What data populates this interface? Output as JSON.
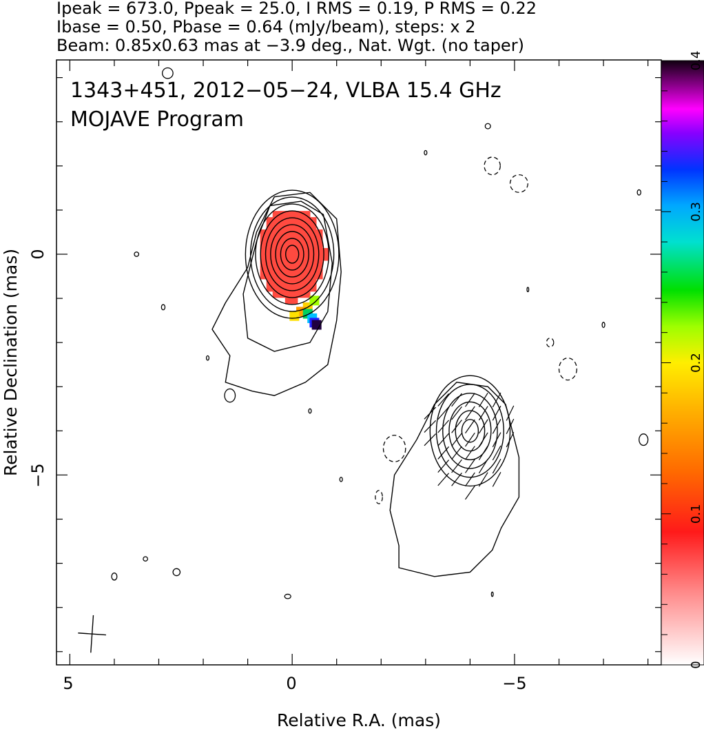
{
  "chart_data": {
    "type": "heatmap",
    "header_lines": [
      "Ipeak = 673.0, Ppeak = 25.0, I RMS = 0.19, P RMS = 0.22",
      "Ibase = 0.50, Pbase = 0.64 (mJy/beam), steps: x 2",
      "Beam: 0.85x0.63 mas at −3.9 deg., Nat. Wgt. (no taper)"
    ],
    "title": "1343+451, 2012−05−24, VLBA 15.4 GHz",
    "subtitle": "MOJAVE Program",
    "xlabel": "Relative R.A. (mas)",
    "ylabel": "Relative Declination (mas)",
    "xlim": [
      5.3,
      -8.3
    ],
    "ylim": [
      -9.3,
      4.4
    ],
    "x_ticks": [
      5,
      0,
      -5
    ],
    "x_tick_labels": [
      "5",
      "0",
      "−5"
    ],
    "y_ticks": [
      0,
      -5
    ],
    "y_tick_labels": [
      "0",
      "−5"
    ],
    "colorbar": {
      "range": [
        0,
        0.4
      ],
      "ticks": [
        0,
        0.1,
        0.2,
        0.3,
        0.4
      ],
      "tick_labels": [
        "0",
        "0.1",
        "0.2",
        "0.3",
        "0.4"
      ]
    },
    "components": [
      {
        "x": 0.0,
        "y": 0.0,
        "levels": 9,
        "major": 1.45,
        "minor": 1.05
      },
      {
        "x": -4.0,
        "y": -4.0,
        "levels": 6,
        "major": 1.25,
        "minor": 0.9
      }
    ],
    "polarization_patch": {
      "x_center": 0.0,
      "y_center": 0.0,
      "x_half": 0.75,
      "y_half": 1.05
    },
    "beam": {
      "x": 4.5,
      "y": -8.6,
      "major": 0.85,
      "minor": 0.63,
      "pa_deg": -3.9
    }
  }
}
